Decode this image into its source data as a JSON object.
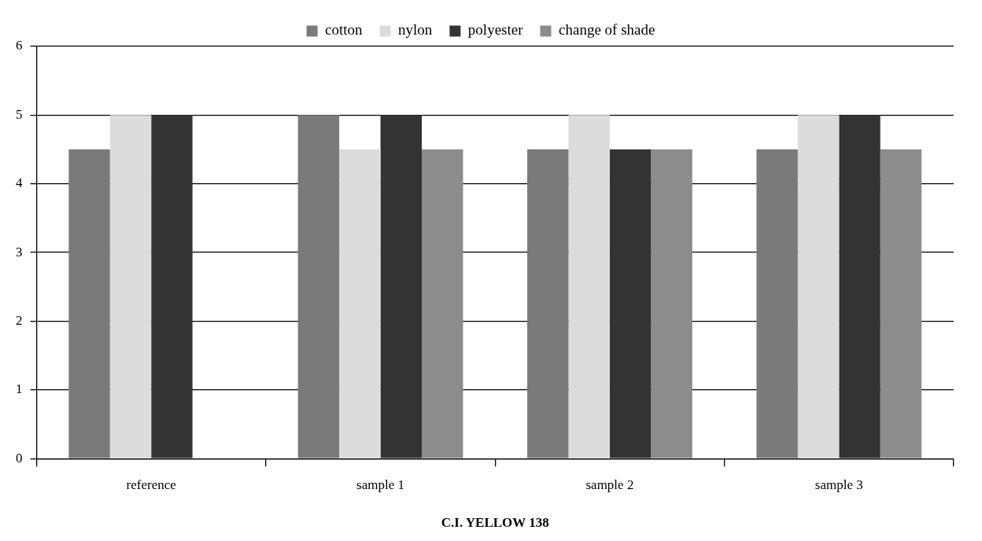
{
  "chart_data": {
    "type": "bar",
    "xlabel": "C.I. YELLOW 138",
    "categories": [
      "reference",
      "sample 1",
      "sample 2",
      "sample 3"
    ],
    "series": [
      {
        "name": "cotton",
        "color": "#7a7a7a",
        "values": [
          4.5,
          5,
          4.5,
          4.5
        ]
      },
      {
        "name": "nylon",
        "color": "#dcdcdc",
        "values": [
          5,
          4.5,
          5,
          5
        ]
      },
      {
        "name": "polyester",
        "color": "#333333",
        "values": [
          5,
          5,
          4.5,
          5
        ]
      },
      {
        "name": "change of shade",
        "color": "#8c8c8c",
        "values": [
          null,
          4.5,
          4.5,
          4.5
        ]
      }
    ],
    "ylim": [
      0,
      6
    ],
    "yticks": [
      0,
      1,
      2,
      3,
      4,
      5,
      6
    ],
    "grid": "y",
    "legend": "top"
  }
}
